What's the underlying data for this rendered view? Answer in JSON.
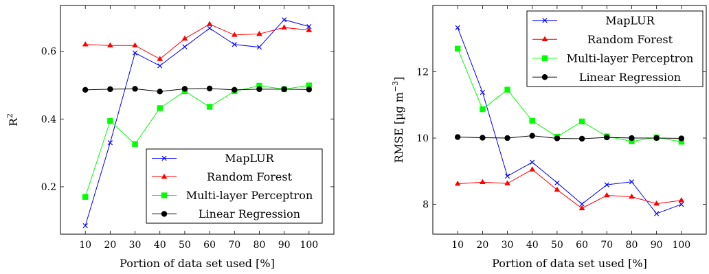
{
  "chart_data": [
    {
      "type": "line",
      "xlabel": "Portion of data set used [%]",
      "ylabel": "R²",
      "ylabel_base": "R",
      "ylabel_sup": "2",
      "x": [
        10,
        20,
        30,
        40,
        50,
        60,
        70,
        80,
        90,
        100
      ],
      "xlim": [
        0,
        110
      ],
      "ylim": [
        0.06,
        0.735
      ],
      "yticks": [
        0.2,
        0.4,
        0.6
      ],
      "ytick_labels": [
        "0.2",
        "0.4",
        "0.6"
      ],
      "legend_position": "bottom-right",
      "series": [
        {
          "name": "MapLUR",
          "color": "#0000ff",
          "marker": "x",
          "values": [
            0.085,
            0.33,
            0.595,
            0.557,
            0.613,
            0.668,
            0.62,
            0.612,
            0.693,
            0.673
          ]
        },
        {
          "name": "Random Forest",
          "color": "#ff0000",
          "marker": "triangle",
          "values": [
            0.62,
            0.617,
            0.617,
            0.577,
            0.637,
            0.68,
            0.648,
            0.651,
            0.67,
            0.662
          ]
        },
        {
          "name": "Multi-layer Perceptron",
          "color": "#00ff00",
          "marker": "square",
          "values": [
            0.17,
            0.394,
            0.326,
            0.432,
            0.482,
            0.436,
            0.482,
            0.498,
            0.488,
            0.499
          ]
        },
        {
          "name": "Linear Regression",
          "color": "#000000",
          "marker": "circle",
          "values": [
            0.486,
            0.488,
            0.489,
            0.481,
            0.489,
            0.49,
            0.486,
            0.488,
            0.488,
            0.487
          ]
        }
      ]
    },
    {
      "type": "line",
      "xlabel": "Portion of data set used [%]",
      "ylabel": "RMSE [µg m⁻³]",
      "ylabel_base": "RMSE [µg m",
      "ylabel_sup": "−3",
      "ylabel_end": "]",
      "x": [
        10,
        20,
        30,
        40,
        50,
        60,
        70,
        80,
        90,
        100
      ],
      "xlim": [
        0,
        110
      ],
      "ylim": [
        7.1,
        14.0
      ],
      "yticks": [
        8,
        10,
        12
      ],
      "ytick_labels": [
        "8",
        "10",
        "12"
      ],
      "legend_position": "top-right",
      "series": [
        {
          "name": "MapLUR",
          "color": "#0000ff",
          "marker": "x",
          "values": [
            13.33,
            11.38,
            8.85,
            9.27,
            8.65,
            8.01,
            8.59,
            8.68,
            7.72,
            8.0
          ]
        },
        {
          "name": "Random Forest",
          "color": "#ff0000",
          "marker": "triangle",
          "values": [
            8.62,
            8.67,
            8.63,
            9.05,
            8.44,
            7.88,
            8.27,
            8.23,
            8.02,
            8.12
          ]
        },
        {
          "name": "Multi-layer Perceptron",
          "color": "#00ff00",
          "marker": "square",
          "values": [
            12.7,
            10.87,
            11.46,
            10.52,
            10.04,
            10.5,
            10.05,
            9.9,
            10.02,
            9.89
          ]
        },
        {
          "name": "Linear Regression",
          "color": "#000000",
          "marker": "circle",
          "values": [
            10.03,
            10.01,
            10.0,
            10.07,
            9.99,
            9.98,
            10.02,
            10.0,
            10.0,
            9.99
          ]
        }
      ]
    }
  ]
}
